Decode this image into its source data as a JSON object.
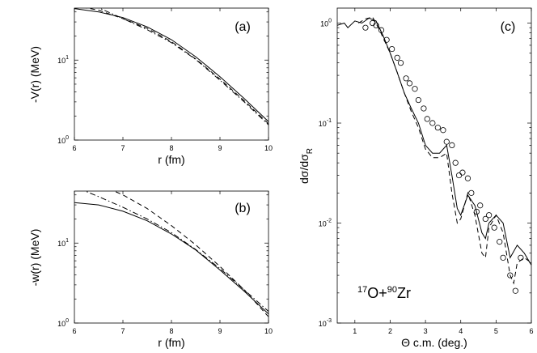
{
  "chart_data": [
    {
      "type": "line",
      "panel_label": "(a)",
      "xlabel": "r (fm)",
      "ylabel": "-V(r) (MeV)",
      "xlim": [
        6,
        10
      ],
      "ylim_log10": [
        0,
        1.65
      ],
      "y_scale": "log",
      "x_ticks": [
        "6",
        "7",
        "8",
        "9",
        "10"
      ],
      "y_ticks": [
        {
          "base": "10",
          "exp": "0"
        },
        {
          "base": "10",
          "exp": "1"
        }
      ],
      "series": [
        {
          "name": "solid",
          "style": "solid",
          "x": [
            6.0,
            6.5,
            7.0,
            7.5,
            8.0,
            8.5,
            9.0,
            9.5,
            10.0
          ],
          "y": [
            44,
            40,
            34,
            26,
            18,
            11,
            6.2,
            3.3,
            1.7
          ]
        },
        {
          "name": "dashed",
          "style": "dashed",
          "x": [
            6.0,
            6.5,
            7.0,
            7.5,
            8.0,
            8.5,
            9.0,
            9.5,
            10.0
          ],
          "y": [
            48,
            42,
            33,
            25,
            17,
            10.3,
            5.8,
            3.1,
            1.6
          ]
        },
        {
          "name": "dash-dot",
          "style": "dashdot",
          "x": [
            6.4,
            7.0,
            7.5,
            8.0,
            8.5,
            9.0,
            9.5,
            10.0
          ],
          "y": [
            48,
            33,
            24,
            16.5,
            10.2,
            5.6,
            3.0,
            1.55
          ]
        }
      ]
    },
    {
      "type": "line",
      "panel_label": "(b)",
      "xlabel": "r (fm)",
      "ylabel": "-w(r) (MeV)",
      "xlim": [
        6,
        10
      ],
      "ylim_log10": [
        0,
        1.65
      ],
      "y_scale": "log",
      "x_ticks": [
        "6",
        "7",
        "8",
        "9",
        "10"
      ],
      "y_ticks": [
        {
          "base": "10",
          "exp": "0"
        },
        {
          "base": "10",
          "exp": "1"
        }
      ],
      "series": [
        {
          "name": "solid",
          "style": "solid",
          "x": [
            6.0,
            6.5,
            7.0,
            7.5,
            8.0,
            8.5,
            9.0,
            9.5,
            10.0
          ],
          "y": [
            32,
            30,
            25,
            19,
            13,
            8.2,
            4.6,
            2.5,
            1.3
          ]
        },
        {
          "name": "dashed",
          "style": "dashed",
          "x": [
            6.7,
            7.0,
            7.5,
            8.0,
            8.5,
            9.0,
            9.5,
            10.0
          ],
          "y": [
            48,
            40,
            27,
            16.5,
            9.5,
            5.1,
            2.6,
            1.2
          ]
        },
        {
          "name": "dash-dot",
          "style": "dashdot",
          "x": [
            6.1,
            6.5,
            7.0,
            7.5,
            8.0,
            8.5,
            9.0,
            9.5,
            10.0
          ],
          "y": [
            48,
            38,
            28,
            20,
            13.5,
            8.3,
            4.8,
            2.6,
            1.4
          ]
        }
      ]
    },
    {
      "type": "line",
      "panel_label": "(c)",
      "xlabel": "Θ c.m. (deg.)",
      "ylabel": "dσ/dσR",
      "ylabel_main": "dσ/dσ",
      "ylabel_sub": "R",
      "xlim": [
        0.5,
        6
      ],
      "ylim_log10": [
        -3,
        0.15
      ],
      "y_scale": "log",
      "x_ticks": [
        "1",
        "2",
        "3",
        "4",
        "5",
        "6"
      ],
      "y_ticks": [
        {
          "base": "10",
          "exp": "-3"
        },
        {
          "base": "10",
          "exp": "-2"
        },
        {
          "base": "10",
          "exp": "-1"
        },
        {
          "base": "10",
          "exp": "0"
        }
      ],
      "annotation": {
        "mass1": "17",
        "elem1": "O+",
        "mass2": "90",
        "elem2": "Zr"
      },
      "series": [
        {
          "name": "solid",
          "style": "solid",
          "x": [
            0.5,
            0.7,
            0.8,
            1.0,
            1.2,
            1.4,
            1.6,
            1.8,
            2.0,
            2.2,
            2.4,
            2.6,
            2.8,
            3.0,
            3.2,
            3.4,
            3.6,
            3.75,
            3.9,
            4.0,
            4.2,
            4.4,
            4.6,
            4.7,
            4.8,
            5.0,
            5.2,
            5.4,
            5.6,
            5.8,
            6.0
          ],
          "y": [
            0.95,
            1.0,
            0.9,
            1.05,
            1.0,
            1.12,
            1.05,
            0.75,
            0.5,
            0.32,
            0.2,
            0.14,
            0.1,
            0.06,
            0.05,
            0.05,
            0.06,
            0.03,
            0.014,
            0.012,
            0.019,
            0.015,
            0.008,
            0.007,
            0.01,
            0.012,
            0.01,
            0.0045,
            0.006,
            0.005,
            0.0038
          ]
        },
        {
          "name": "dashed",
          "style": "dashed",
          "x": [
            1.1,
            1.3,
            1.5,
            1.7,
            2.0,
            2.2,
            2.4,
            2.6,
            2.8,
            3.0,
            3.2,
            3.4,
            3.6,
            3.75,
            3.9,
            4.0,
            4.2,
            4.4,
            4.6,
            4.7,
            4.8,
            5.0,
            5.2,
            5.4,
            5.5,
            5.6,
            5.8,
            6.0
          ],
          "y": [
            1.0,
            1.1,
            1.15,
            0.85,
            0.5,
            0.32,
            0.2,
            0.13,
            0.09,
            0.055,
            0.045,
            0.045,
            0.05,
            0.02,
            0.01,
            0.011,
            0.02,
            0.012,
            0.005,
            0.0045,
            0.009,
            0.012,
            0.008,
            0.003,
            0.0025,
            0.004,
            0.0045,
            0.004
          ]
        },
        {
          "name": "data",
          "style": "circles",
          "x": [
            1.3,
            1.5,
            1.6,
            1.75,
            1.9,
            2.05,
            2.2,
            2.3,
            2.45,
            2.55,
            2.7,
            2.8,
            2.95,
            3.05,
            3.2,
            3.35,
            3.5,
            3.6,
            3.75,
            3.85,
            3.95,
            4.05,
            4.2,
            4.3,
            4.45,
            4.55,
            4.7,
            4.8,
            4.95,
            5.1,
            5.2,
            5.4,
            5.55,
            5.7
          ],
          "y": [
            0.9,
            1.0,
            0.95,
            0.85,
            0.68,
            0.55,
            0.45,
            0.4,
            0.28,
            0.25,
            0.22,
            0.17,
            0.14,
            0.11,
            0.1,
            0.09,
            0.085,
            0.065,
            0.06,
            0.04,
            0.03,
            0.032,
            0.028,
            0.02,
            0.013,
            0.015,
            0.011,
            0.012,
            0.009,
            0.0065,
            0.0045,
            0.003,
            0.0021,
            0.0045
          ]
        }
      ]
    }
  ]
}
